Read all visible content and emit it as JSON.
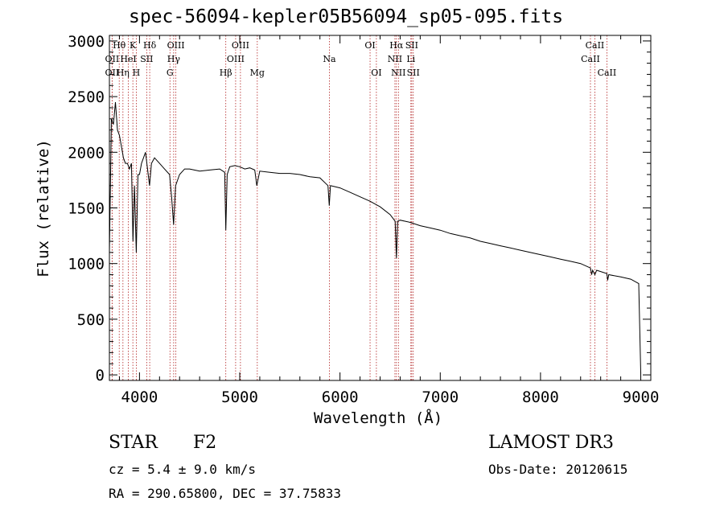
{
  "chart_data": {
    "type": "line",
    "title": "spec-56094-kepler05B56094_sp05-095.fits",
    "xlabel": "Wavelength (Å)",
    "ylabel": "Flux (relative)",
    "xlim": [
      3700,
      9100
    ],
    "ylim": [
      -50,
      3050
    ],
    "xticks": [
      4000,
      5000,
      6000,
      7000,
      8000,
      9000
    ],
    "yticks": [
      0,
      500,
      1000,
      1500,
      2000,
      2500,
      3000
    ],
    "series": [
      {
        "name": "flux",
        "color": "#000000",
        "points": [
          [
            3700,
            1100
          ],
          [
            3720,
            2300
          ],
          [
            3740,
            2250
          ],
          [
            3760,
            2450
          ],
          [
            3780,
            2200
          ],
          [
            3800,
            2150
          ],
          [
            3820,
            2050
          ],
          [
            3840,
            1950
          ],
          [
            3860,
            1900
          ],
          [
            3880,
            1900
          ],
          [
            3900,
            1850
          ],
          [
            3920,
            1900
          ],
          [
            3935,
            1200
          ],
          [
            3950,
            1700
          ],
          [
            3968,
            1100
          ],
          [
            3985,
            1800
          ],
          [
            4000,
            1800
          ],
          [
            4020,
            1900
          ],
          [
            4040,
            1950
          ],
          [
            4060,
            2000
          ],
          [
            4080,
            1850
          ],
          [
            4100,
            1700
          ],
          [
            4120,
            1900
          ],
          [
            4150,
            1950
          ],
          [
            4200,
            1900
          ],
          [
            4250,
            1850
          ],
          [
            4300,
            1800
          ],
          [
            4320,
            1600
          ],
          [
            4340,
            1350
          ],
          [
            4360,
            1700
          ],
          [
            4400,
            1800
          ],
          [
            4450,
            1850
          ],
          [
            4500,
            1850
          ],
          [
            4600,
            1830
          ],
          [
            4700,
            1840
          ],
          [
            4800,
            1850
          ],
          [
            4850,
            1820
          ],
          [
            4861,
            1300
          ],
          [
            4875,
            1800
          ],
          [
            4900,
            1870
          ],
          [
            4950,
            1880
          ],
          [
            5000,
            1870
          ],
          [
            5050,
            1850
          ],
          [
            5100,
            1860
          ],
          [
            5150,
            1840
          ],
          [
            5170,
            1700
          ],
          [
            5200,
            1830
          ],
          [
            5300,
            1820
          ],
          [
            5400,
            1810
          ],
          [
            5500,
            1810
          ],
          [
            5600,
            1800
          ],
          [
            5700,
            1780
          ],
          [
            5800,
            1770
          ],
          [
            5880,
            1700
          ],
          [
            5893,
            1520
          ],
          [
            5905,
            1700
          ],
          [
            6000,
            1680
          ],
          [
            6100,
            1640
          ],
          [
            6200,
            1600
          ],
          [
            6300,
            1560
          ],
          [
            6400,
            1510
          ],
          [
            6500,
            1440
          ],
          [
            6550,
            1380
          ],
          [
            6563,
            1050
          ],
          [
            6575,
            1380
          ],
          [
            6600,
            1390
          ],
          [
            6700,
            1370
          ],
          [
            6800,
            1340
          ],
          [
            6900,
            1320
          ],
          [
            7000,
            1300
          ],
          [
            7100,
            1270
          ],
          [
            7200,
            1250
          ],
          [
            7300,
            1230
          ],
          [
            7400,
            1200
          ],
          [
            7500,
            1180
          ],
          [
            7600,
            1160
          ],
          [
            7700,
            1140
          ],
          [
            7800,
            1120
          ],
          [
            7900,
            1100
          ],
          [
            8000,
            1080
          ],
          [
            8100,
            1060
          ],
          [
            8200,
            1040
          ],
          [
            8300,
            1020
          ],
          [
            8400,
            1000
          ],
          [
            8498,
            960
          ],
          [
            8510,
            900
          ],
          [
            8520,
            940
          ],
          [
            8542,
            900
          ],
          [
            8560,
            940
          ],
          [
            8662,
            910
          ],
          [
            8670,
            850
          ],
          [
            8680,
            900
          ],
          [
            8800,
            880
          ],
          [
            8900,
            860
          ],
          [
            8980,
            820
          ],
          [
            9000,
            20
          ]
        ]
      }
    ],
    "lines": [
      {
        "label": "OII",
        "wave": 3727,
        "row": 1
      },
      {
        "label": "OII",
        "wave": 3727,
        "row": 2
      },
      {
        "label": "Hθ",
        "wave": 3798,
        "row": 0
      },
      {
        "label": "Hη",
        "wave": 3835,
        "row": 2
      },
      {
        "label": "HeI",
        "wave": 3889,
        "row": 1
      },
      {
        "label": "K",
        "wave": 3934,
        "row": 0
      },
      {
        "label": "H",
        "wave": 3968,
        "row": 2
      },
      {
        "label": "SII",
        "wave": 4072,
        "row": 1
      },
      {
        "label": "Hδ",
        "wave": 4102,
        "row": 0
      },
      {
        "label": "G",
        "wave": 4304,
        "row": 2
      },
      {
        "label": "Hγ",
        "wave": 4341,
        "row": 1
      },
      {
        "label": "OIII",
        "wave": 4363,
        "row": 0
      },
      {
        "label": "Hβ",
        "wave": 4861,
        "row": 2
      },
      {
        "label": "OIII",
        "wave": 4959,
        "row": 1
      },
      {
        "label": "OIII",
        "wave": 5007,
        "row": 0
      },
      {
        "label": "Mg",
        "wave": 5175,
        "row": 2
      },
      {
        "label": "Na",
        "wave": 5894,
        "row": 1
      },
      {
        "label": "OI",
        "wave": 6300,
        "row": 0
      },
      {
        "label": "OI",
        "wave": 6363,
        "row": 2
      },
      {
        "label": "NII",
        "wave": 6548,
        "row": 1
      },
      {
        "label": "Hα",
        "wave": 6563,
        "row": 0
      },
      {
        "label": "NII",
        "wave": 6583,
        "row": 2
      },
      {
        "label": "Li",
        "wave": 6707,
        "row": 1
      },
      {
        "label": "SII",
        "wave": 6716,
        "row": 0
      },
      {
        "label": "SII",
        "wave": 6731,
        "row": 2
      },
      {
        "label": "CaII",
        "wave": 8498,
        "row": 1
      },
      {
        "label": "CaII",
        "wave": 8542,
        "row": 0
      },
      {
        "label": "CaII",
        "wave": 8662,
        "row": 2
      }
    ]
  },
  "info": {
    "class_label": "STAR",
    "subclass": "F2",
    "survey": "LAMOST DR3",
    "cz": "cz = 5.4 ± 9.0 km/s",
    "obs_date": "Obs-Date: 20120615",
    "radec": "RA = 290.65800, DEC =  37.75833"
  },
  "colors": {
    "line_marker": "#b22222",
    "spectrum": "#000000",
    "axis": "#000000"
  }
}
